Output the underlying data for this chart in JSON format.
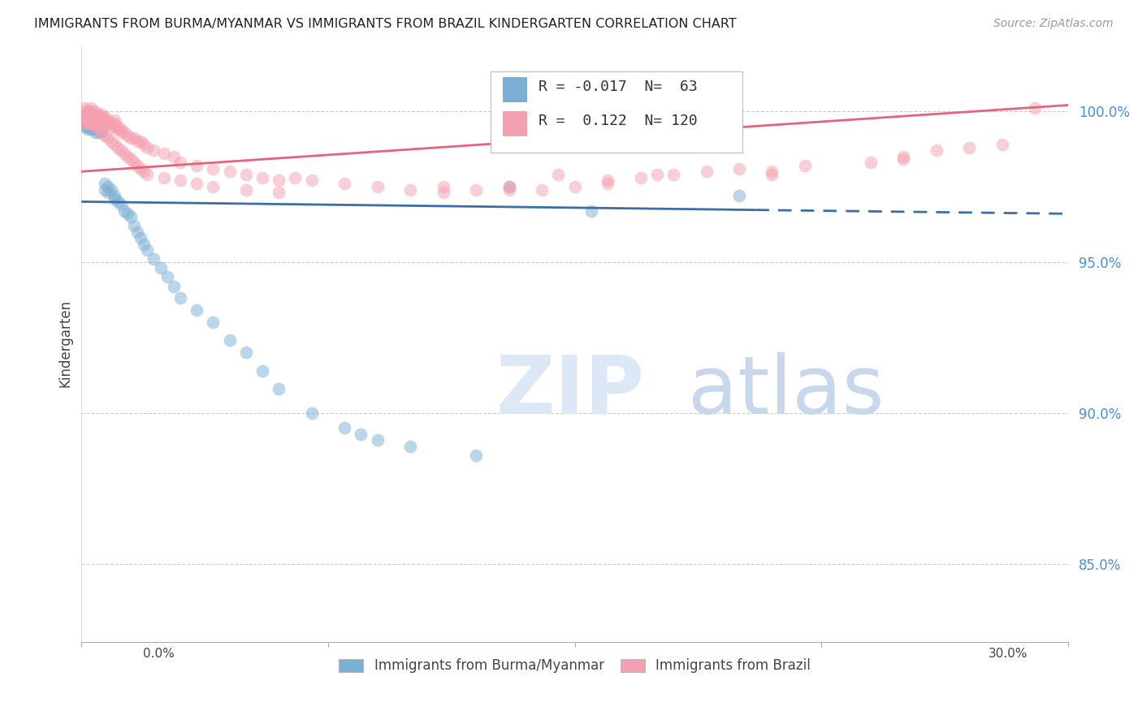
{
  "title": "IMMIGRANTS FROM BURMA/MYANMAR VS IMMIGRANTS FROM BRAZIL KINDERGARTEN CORRELATION CHART",
  "source": "Source: ZipAtlas.com",
  "ylabel": "Kindergarten",
  "legend_blue_label": "Immigrants from Burma/Myanmar",
  "legend_pink_label": "Immigrants from Brazil",
  "legend_r_blue": "-0.017",
  "legend_n_blue": "63",
  "legend_r_pink": "0.122",
  "legend_n_pink": "120",
  "y_ticks": [
    0.85,
    0.9,
    0.95,
    1.0
  ],
  "y_tick_labels": [
    "85.0%",
    "90.0%",
    "95.0%",
    "100.0%"
  ],
  "x_range": [
    0.0,
    0.3
  ],
  "y_range": [
    0.824,
    1.022
  ],
  "blue_color": "#7BAFD4",
  "pink_color": "#F4A0B0",
  "blue_line_color": "#3A6EA8",
  "pink_line_color": "#E8637A",
  "blue_line_y0": 0.97,
  "blue_line_y1": 0.966,
  "blue_line_solid_end": 0.205,
  "pink_line_y0": 0.98,
  "pink_line_y1": 1.002,
  "blue_scatter": [
    [
      0.001,
      0.998
    ],
    [
      0.001,
      0.997
    ],
    [
      0.001,
      0.996
    ],
    [
      0.001,
      0.995
    ],
    [
      0.002,
      0.999
    ],
    [
      0.002,
      0.997
    ],
    [
      0.002,
      0.996
    ],
    [
      0.002,
      0.995
    ],
    [
      0.002,
      0.994
    ],
    [
      0.003,
      0.998
    ],
    [
      0.003,
      0.997
    ],
    [
      0.003,
      0.996
    ],
    [
      0.003,
      0.995
    ],
    [
      0.003,
      0.994
    ],
    [
      0.004,
      0.997
    ],
    [
      0.004,
      0.996
    ],
    [
      0.004,
      0.995
    ],
    [
      0.004,
      0.994
    ],
    [
      0.004,
      0.993
    ],
    [
      0.005,
      0.996
    ],
    [
      0.005,
      0.995
    ],
    [
      0.005,
      0.994
    ],
    [
      0.005,
      0.993
    ],
    [
      0.006,
      0.995
    ],
    [
      0.006,
      0.994
    ],
    [
      0.006,
      0.993
    ],
    [
      0.007,
      0.976
    ],
    [
      0.007,
      0.974
    ],
    [
      0.008,
      0.975
    ],
    [
      0.008,
      0.973
    ],
    [
      0.009,
      0.974
    ],
    [
      0.01,
      0.972
    ],
    [
      0.01,
      0.971
    ],
    [
      0.011,
      0.97
    ],
    [
      0.012,
      0.969
    ],
    [
      0.013,
      0.967
    ],
    [
      0.014,
      0.966
    ],
    [
      0.015,
      0.965
    ],
    [
      0.016,
      0.962
    ],
    [
      0.017,
      0.96
    ],
    [
      0.018,
      0.958
    ],
    [
      0.019,
      0.956
    ],
    [
      0.02,
      0.954
    ],
    [
      0.022,
      0.951
    ],
    [
      0.024,
      0.948
    ],
    [
      0.026,
      0.945
    ],
    [
      0.028,
      0.942
    ],
    [
      0.03,
      0.938
    ],
    [
      0.035,
      0.934
    ],
    [
      0.04,
      0.93
    ],
    [
      0.045,
      0.924
    ],
    [
      0.05,
      0.92
    ],
    [
      0.055,
      0.914
    ],
    [
      0.06,
      0.908
    ],
    [
      0.07,
      0.9
    ],
    [
      0.08,
      0.895
    ],
    [
      0.085,
      0.893
    ],
    [
      0.09,
      0.891
    ],
    [
      0.1,
      0.889
    ],
    [
      0.12,
      0.886
    ],
    [
      0.13,
      0.975
    ],
    [
      0.155,
      0.967
    ],
    [
      0.2,
      0.972
    ]
  ],
  "pink_scatter": [
    [
      0.001,
      1.001
    ],
    [
      0.001,
      1.0
    ],
    [
      0.001,
      0.999
    ],
    [
      0.001,
      0.998
    ],
    [
      0.001,
      0.997
    ],
    [
      0.001,
      0.996
    ],
    [
      0.002,
      1.0
    ],
    [
      0.002,
      0.999
    ],
    [
      0.002,
      0.998
    ],
    [
      0.002,
      0.997
    ],
    [
      0.002,
      0.996
    ],
    [
      0.003,
      1.001
    ],
    [
      0.003,
      1.0
    ],
    [
      0.003,
      0.999
    ],
    [
      0.003,
      0.998
    ],
    [
      0.003,
      0.997
    ],
    [
      0.003,
      0.996
    ],
    [
      0.004,
      1.0
    ],
    [
      0.004,
      0.999
    ],
    [
      0.004,
      0.998
    ],
    [
      0.004,
      0.997
    ],
    [
      0.004,
      0.996
    ],
    [
      0.005,
      0.999
    ],
    [
      0.005,
      0.998
    ],
    [
      0.005,
      0.997
    ],
    [
      0.005,
      0.996
    ],
    [
      0.006,
      0.999
    ],
    [
      0.006,
      0.998
    ],
    [
      0.006,
      0.997
    ],
    [
      0.006,
      0.996
    ],
    [
      0.007,
      0.998
    ],
    [
      0.007,
      0.997
    ],
    [
      0.007,
      0.996
    ],
    [
      0.008,
      0.997
    ],
    [
      0.008,
      0.996
    ],
    [
      0.009,
      0.996
    ],
    [
      0.009,
      0.995
    ],
    [
      0.01,
      0.997
    ],
    [
      0.01,
      0.996
    ],
    [
      0.01,
      0.995
    ],
    [
      0.011,
      0.995
    ],
    [
      0.011,
      0.994
    ],
    [
      0.012,
      0.994
    ],
    [
      0.012,
      0.993
    ],
    [
      0.013,
      0.993
    ],
    [
      0.014,
      0.992
    ],
    [
      0.015,
      0.991
    ],
    [
      0.016,
      0.991
    ],
    [
      0.017,
      0.99
    ],
    [
      0.018,
      0.99
    ],
    [
      0.019,
      0.989
    ],
    [
      0.02,
      0.988
    ],
    [
      0.022,
      0.987
    ],
    [
      0.025,
      0.986
    ],
    [
      0.028,
      0.985
    ],
    [
      0.03,
      0.983
    ],
    [
      0.035,
      0.982
    ],
    [
      0.04,
      0.981
    ],
    [
      0.045,
      0.98
    ],
    [
      0.05,
      0.979
    ],
    [
      0.055,
      0.978
    ],
    [
      0.06,
      0.977
    ],
    [
      0.065,
      0.978
    ],
    [
      0.07,
      0.977
    ],
    [
      0.08,
      0.976
    ],
    [
      0.09,
      0.975
    ],
    [
      0.1,
      0.974
    ],
    [
      0.11,
      0.973
    ],
    [
      0.12,
      0.974
    ],
    [
      0.13,
      0.975
    ],
    [
      0.14,
      0.974
    ],
    [
      0.15,
      0.975
    ],
    [
      0.16,
      0.977
    ],
    [
      0.17,
      0.978
    ],
    [
      0.18,
      0.979
    ],
    [
      0.19,
      0.98
    ],
    [
      0.2,
      0.981
    ],
    [
      0.21,
      0.98
    ],
    [
      0.22,
      0.982
    ],
    [
      0.24,
      0.983
    ],
    [
      0.25,
      0.985
    ],
    [
      0.26,
      0.987
    ],
    [
      0.27,
      0.988
    ],
    [
      0.28,
      0.989
    ],
    [
      0.145,
      0.979
    ],
    [
      0.29,
      1.001
    ],
    [
      0.175,
      0.979
    ],
    [
      0.001,
      0.998
    ],
    [
      0.002,
      0.997
    ],
    [
      0.003,
      0.996
    ],
    [
      0.004,
      0.995
    ],
    [
      0.005,
      0.994
    ],
    [
      0.006,
      0.993
    ],
    [
      0.007,
      0.992
    ],
    [
      0.008,
      0.991
    ],
    [
      0.009,
      0.99
    ],
    [
      0.01,
      0.989
    ],
    [
      0.011,
      0.988
    ],
    [
      0.012,
      0.987
    ],
    [
      0.013,
      0.986
    ],
    [
      0.014,
      0.985
    ],
    [
      0.015,
      0.984
    ],
    [
      0.016,
      0.983
    ],
    [
      0.017,
      0.982
    ],
    [
      0.018,
      0.981
    ],
    [
      0.019,
      0.98
    ],
    [
      0.02,
      0.979
    ],
    [
      0.025,
      0.978
    ],
    [
      0.03,
      0.977
    ],
    [
      0.035,
      0.976
    ],
    [
      0.04,
      0.975
    ],
    [
      0.05,
      0.974
    ],
    [
      0.06,
      0.973
    ],
    [
      0.11,
      0.975
    ],
    [
      0.13,
      0.974
    ],
    [
      0.16,
      0.976
    ],
    [
      0.21,
      0.979
    ],
    [
      0.25,
      0.984
    ]
  ]
}
